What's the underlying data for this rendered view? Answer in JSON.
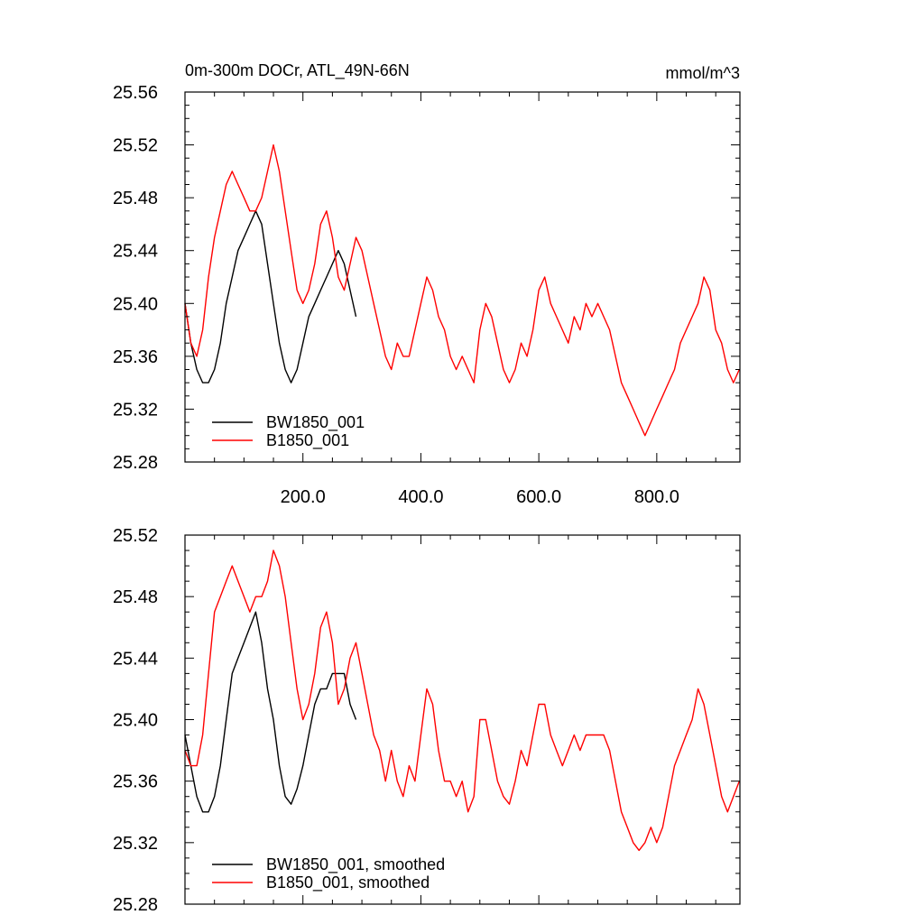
{
  "chart_data": [
    {
      "type": "line",
      "title": "0m-300m DOCr, ATL_49N-66N",
      "units": "mmol/m^3",
      "xlim": [
        0,
        941
      ],
      "ylim": [
        25.28,
        25.56
      ],
      "yticks": [
        "25.28",
        "25.32",
        "25.36",
        "25.40",
        "25.44",
        "25.48",
        "25.52",
        "25.56"
      ],
      "xticks": [
        "200.0",
        "400.0",
        "600.0",
        "800.0"
      ],
      "legend_position": "bottom-left",
      "series": [
        {
          "name": "BW1850_001",
          "color": "#000000",
          "x": [
            0,
            10,
            20,
            30,
            40,
            50,
            60,
            70,
            80,
            90,
            100,
            110,
            120,
            130,
            140,
            150,
            160,
            170,
            180,
            190,
            200,
            210,
            220,
            230,
            240,
            250,
            260,
            270,
            280,
            290
          ],
          "y": [
            25.4,
            25.37,
            25.35,
            25.34,
            25.34,
            25.35,
            25.37,
            25.4,
            25.42,
            25.44,
            25.45,
            25.46,
            25.47,
            25.46,
            25.43,
            25.4,
            25.37,
            25.35,
            25.34,
            25.35,
            25.37,
            25.39,
            25.4,
            25.41,
            25.42,
            25.43,
            25.44,
            25.43,
            25.41,
            25.39
          ]
        },
        {
          "name": "B1850_001",
          "color": "#ff0000",
          "x": [
            0,
            10,
            20,
            30,
            40,
            50,
            60,
            70,
            80,
            90,
            100,
            110,
            120,
            130,
            140,
            150,
            160,
            170,
            180,
            190,
            200,
            210,
            220,
            230,
            240,
            250,
            260,
            270,
            280,
            290,
            300,
            310,
            320,
            330,
            340,
            350,
            360,
            370,
            380,
            390,
            400,
            410,
            420,
            430,
            440,
            450,
            460,
            470,
            480,
            490,
            500,
            510,
            520,
            530,
            540,
            550,
            560,
            570,
            580,
            590,
            600,
            610,
            620,
            630,
            640,
            650,
            660,
            670,
            680,
            690,
            700,
            710,
            720,
            730,
            740,
            750,
            760,
            770,
            780,
            790,
            800,
            810,
            820,
            830,
            840,
            850,
            860,
            870,
            880,
            890,
            900,
            910,
            920,
            930,
            940
          ],
          "y": [
            25.4,
            25.37,
            25.36,
            25.38,
            25.42,
            25.45,
            25.47,
            25.49,
            25.5,
            25.49,
            25.48,
            25.47,
            25.47,
            25.48,
            25.5,
            25.52,
            25.5,
            25.47,
            25.44,
            25.41,
            25.4,
            25.41,
            25.43,
            25.46,
            25.47,
            25.45,
            25.42,
            25.41,
            25.43,
            25.45,
            25.44,
            25.42,
            25.4,
            25.38,
            25.36,
            25.35,
            25.37,
            25.36,
            25.36,
            25.38,
            25.4,
            25.42,
            25.41,
            25.39,
            25.38,
            25.36,
            25.35,
            25.36,
            25.35,
            25.34,
            25.38,
            25.4,
            25.39,
            25.37,
            25.35,
            25.34,
            25.35,
            25.37,
            25.36,
            25.38,
            25.41,
            25.42,
            25.4,
            25.39,
            25.38,
            25.37,
            25.39,
            25.38,
            25.4,
            25.39,
            25.4,
            25.39,
            25.38,
            25.36,
            25.34,
            25.33,
            25.32,
            25.31,
            25.3,
            25.31,
            25.32,
            25.33,
            25.34,
            25.35,
            25.37,
            25.38,
            25.39,
            25.4,
            25.42,
            25.41,
            25.38,
            25.37,
            25.35,
            25.34,
            25.35
          ]
        }
      ]
    },
    {
      "type": "line",
      "xlim": [
        0,
        941
      ],
      "ylim": [
        25.28,
        25.52
      ],
      "yticks": [
        "25.28",
        "25.32",
        "25.36",
        "25.40",
        "25.44",
        "25.48",
        "25.52"
      ],
      "xticks": [],
      "legend_position": "bottom-left",
      "series": [
        {
          "name": "BW1850_001, smoothed",
          "color": "#000000",
          "x": [
            0,
            10,
            20,
            30,
            40,
            50,
            60,
            70,
            80,
            90,
            100,
            110,
            120,
            130,
            140,
            150,
            160,
            170,
            180,
            190,
            200,
            210,
            220,
            230,
            240,
            250,
            260,
            270,
            280,
            290
          ],
          "y": [
            25.39,
            25.37,
            25.35,
            25.34,
            25.34,
            25.35,
            25.37,
            25.4,
            25.43,
            25.44,
            25.45,
            25.46,
            25.47,
            25.45,
            25.42,
            25.4,
            25.37,
            25.35,
            25.345,
            25.355,
            25.37,
            25.39,
            25.41,
            25.42,
            25.42,
            25.43,
            25.43,
            25.43,
            25.41,
            25.4
          ]
        },
        {
          "name": "B1850_001, smoothed",
          "color": "#ff0000",
          "x": [
            0,
            10,
            20,
            30,
            40,
            50,
            60,
            70,
            80,
            90,
            100,
            110,
            120,
            130,
            140,
            150,
            160,
            170,
            180,
            190,
            200,
            210,
            220,
            230,
            240,
            250,
            260,
            270,
            280,
            290,
            300,
            310,
            320,
            330,
            340,
            350,
            360,
            370,
            380,
            390,
            400,
            410,
            420,
            430,
            440,
            450,
            460,
            470,
            480,
            490,
            500,
            510,
            520,
            530,
            540,
            550,
            560,
            570,
            580,
            590,
            600,
            610,
            620,
            630,
            640,
            650,
            660,
            670,
            680,
            690,
            700,
            710,
            720,
            730,
            740,
            750,
            760,
            770,
            780,
            790,
            800,
            810,
            820,
            830,
            840,
            850,
            860,
            870,
            880,
            890,
            900,
            910,
            920,
            930,
            940
          ],
          "y": [
            25.38,
            25.37,
            25.37,
            25.39,
            25.43,
            25.47,
            25.48,
            25.49,
            25.5,
            25.49,
            25.48,
            25.47,
            25.48,
            25.48,
            25.49,
            25.51,
            25.5,
            25.48,
            25.45,
            25.42,
            25.4,
            25.41,
            25.43,
            25.46,
            25.47,
            25.45,
            25.41,
            25.42,
            25.44,
            25.45,
            25.43,
            25.41,
            25.39,
            25.38,
            25.36,
            25.38,
            25.36,
            25.35,
            25.37,
            25.36,
            25.39,
            25.42,
            25.41,
            25.38,
            25.36,
            25.36,
            25.35,
            25.36,
            25.34,
            25.35,
            25.4,
            25.4,
            25.38,
            25.36,
            25.35,
            25.345,
            25.36,
            25.38,
            25.37,
            25.39,
            25.41,
            25.41,
            25.39,
            25.38,
            25.37,
            25.38,
            25.39,
            25.38,
            25.39,
            25.39,
            25.39,
            25.39,
            25.38,
            25.36,
            25.34,
            25.33,
            25.32,
            25.315,
            25.32,
            25.33,
            25.32,
            25.33,
            25.35,
            25.37,
            25.38,
            25.39,
            25.4,
            25.42,
            25.41,
            25.39,
            25.37,
            25.35,
            25.34,
            25.35,
            25.36
          ]
        }
      ]
    }
  ]
}
